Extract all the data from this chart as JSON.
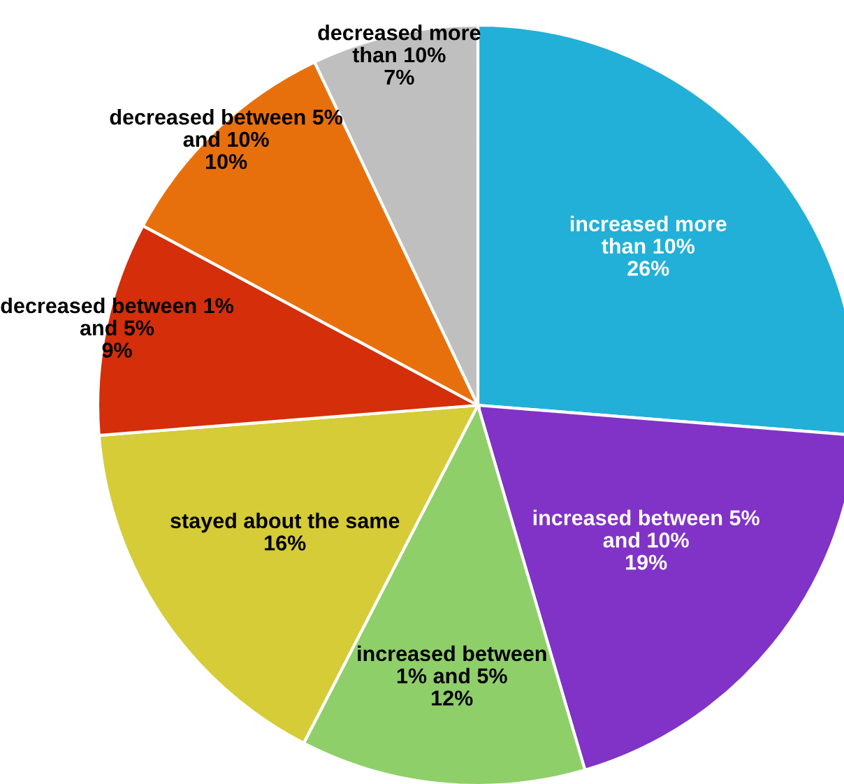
{
  "chart_data": {
    "type": "pie",
    "categories": [
      "increased more\nthan 10%",
      "increased between 5%\nand 10%",
      "increased between\n1% and 5%",
      "stayed about the same",
      "decreased between 1%\nand 5%",
      "decreased between 5%\nand 10%",
      "decreased more\nthan 10%"
    ],
    "values": [
      26,
      19,
      12,
      16,
      9,
      10,
      7
    ],
    "value_labels": [
      "26%",
      "19%",
      "12%",
      "16%",
      "9%",
      "10%",
      "7%"
    ],
    "colors": [
      "#22b0d8",
      "#8033c6",
      "#8fcf6a",
      "#d5cc38",
      "#d42e0b",
      "#e8700c",
      "#bfbfbf"
    ],
    "legend": false
  }
}
